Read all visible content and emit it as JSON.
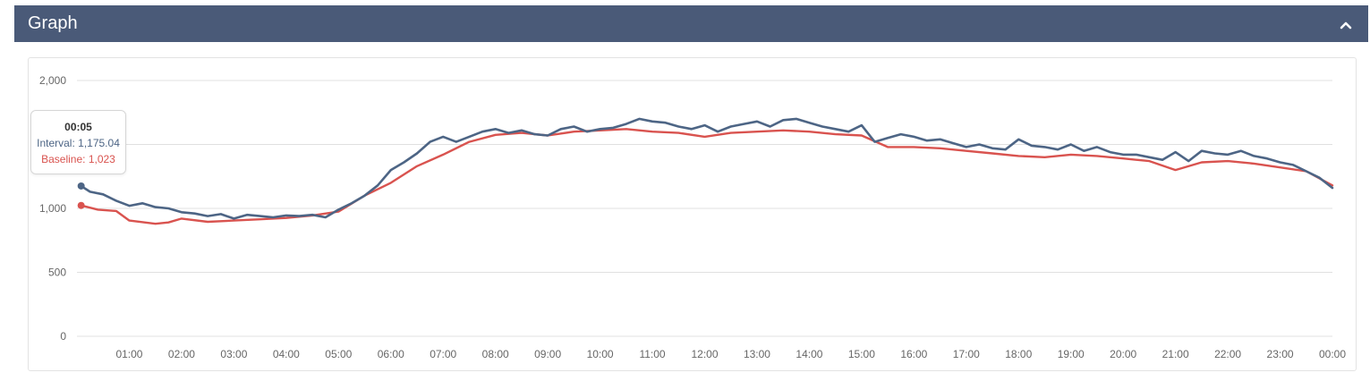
{
  "panel": {
    "title": "Graph",
    "collapse_icon": "chevron-up-icon"
  },
  "colors": {
    "header_bg": "#4a5a78",
    "interval": "#4d6585",
    "baseline": "#d9534f",
    "grid": "#e0e0e0"
  },
  "tooltip": {
    "time": "00:05",
    "interval_label": "Interval: ",
    "interval_value": "1,175.04",
    "baseline_label": "Baseline: ",
    "baseline_value": "1,023"
  },
  "chart_data": {
    "type": "line",
    "xlabel": "",
    "ylabel": "",
    "ylim": [
      0,
      2000
    ],
    "y_ticks": [
      0,
      500,
      1000,
      2000
    ],
    "y_tick_labels": [
      "0",
      "500",
      "1,000",
      "2,000"
    ],
    "xlim": [
      0,
      24
    ],
    "x_tick_labels": [
      "01:00",
      "02:00",
      "03:00",
      "04:00",
      "05:00",
      "06:00",
      "07:00",
      "08:00",
      "09:00",
      "10:00",
      "11:00",
      "12:00",
      "13:00",
      "14:00",
      "15:00",
      "16:00",
      "17:00",
      "18:00",
      "19:00",
      "20:00",
      "21:00",
      "22:00",
      "23:00",
      "00:00"
    ],
    "grid": true,
    "legend": "none",
    "series": [
      {
        "name": "Interval",
        "x": [
          0.08,
          0.25,
          0.5,
          0.75,
          1,
          1.25,
          1.5,
          1.75,
          2,
          2.25,
          2.5,
          2.75,
          3,
          3.25,
          3.5,
          3.75,
          4,
          4.25,
          4.5,
          4.75,
          5,
          5.25,
          5.5,
          5.75,
          6,
          6.25,
          6.5,
          6.75,
          7,
          7.25,
          7.5,
          7.75,
          8,
          8.25,
          8.5,
          8.75,
          9,
          9.25,
          9.5,
          9.75,
          10,
          10.25,
          10.5,
          10.75,
          11,
          11.25,
          11.5,
          11.75,
          12,
          12.25,
          12.5,
          12.75,
          13,
          13.25,
          13.5,
          13.75,
          14,
          14.25,
          14.5,
          14.75,
          15,
          15.25,
          15.5,
          15.75,
          16,
          16.25,
          16.5,
          16.75,
          17,
          17.25,
          17.5,
          17.75,
          18,
          18.25,
          18.5,
          18.75,
          19,
          19.25,
          19.5,
          19.75,
          20,
          20.25,
          20.5,
          20.75,
          21,
          21.25,
          21.5,
          21.75,
          22,
          22.25,
          22.5,
          22.75,
          23,
          23.25,
          23.5,
          23.75,
          24
        ],
        "y": [
          1175,
          1130,
          1110,
          1060,
          1020,
          1040,
          1010,
          1000,
          970,
          960,
          940,
          955,
          920,
          950,
          940,
          930,
          945,
          940,
          950,
          930,
          990,
          1040,
          1100,
          1180,
          1300,
          1360,
          1430,
          1520,
          1560,
          1520,
          1560,
          1600,
          1620,
          1590,
          1610,
          1580,
          1570,
          1620,
          1640,
          1600,
          1620,
          1630,
          1660,
          1700,
          1680,
          1670,
          1640,
          1620,
          1650,
          1600,
          1640,
          1660,
          1680,
          1640,
          1690,
          1700,
          1670,
          1640,
          1620,
          1600,
          1650,
          1520,
          1550,
          1580,
          1560,
          1530,
          1540,
          1510,
          1480,
          1500,
          1470,
          1460,
          1540,
          1490,
          1480,
          1460,
          1500,
          1450,
          1480,
          1440,
          1420,
          1420,
          1400,
          1380,
          1440,
          1370,
          1450,
          1430,
          1420,
          1450,
          1410,
          1390,
          1360,
          1340,
          1290,
          1240,
          1160
        ]
      },
      {
        "name": "Baseline",
        "x": [
          0.08,
          0.4,
          0.75,
          1,
          1.5,
          1.75,
          2,
          2.5,
          3,
          3.5,
          4,
          4.5,
          5,
          5.5,
          6,
          6.5,
          7,
          7.5,
          8,
          8.5,
          9,
          9.5,
          10,
          10.5,
          11,
          11.5,
          12,
          12.5,
          13,
          13.5,
          14,
          14.5,
          15,
          15.5,
          16,
          16.5,
          17,
          17.5,
          18,
          18.5,
          19,
          19.5,
          20,
          20.5,
          21,
          21.5,
          22,
          22.5,
          23,
          23.5,
          24
        ],
        "y": [
          1023,
          990,
          980,
          905,
          880,
          890,
          920,
          895,
          905,
          915,
          925,
          945,
          975,
          1100,
          1200,
          1330,
          1420,
          1520,
          1575,
          1590,
          1570,
          1600,
          1610,
          1620,
          1600,
          1590,
          1560,
          1590,
          1600,
          1610,
          1600,
          1580,
          1570,
          1480,
          1480,
          1470,
          1450,
          1430,
          1410,
          1400,
          1420,
          1410,
          1390,
          1370,
          1300,
          1360,
          1370,
          1350,
          1320,
          1290,
          1180
        ]
      }
    ]
  }
}
